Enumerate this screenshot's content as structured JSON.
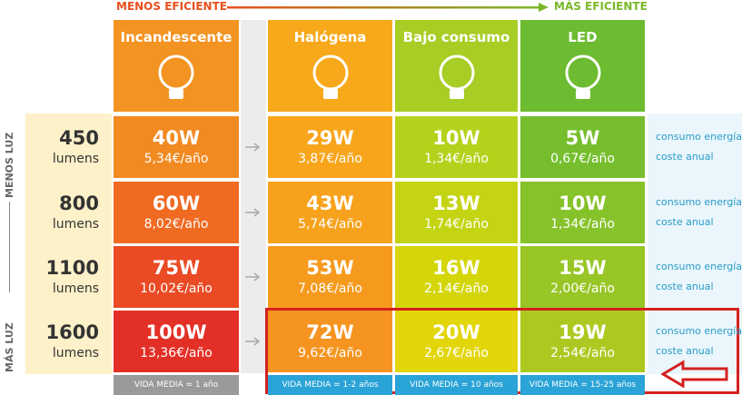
{
  "header": {
    "left": "MENOS EFICIENTE",
    "right": "MÁS EFICIENTE",
    "side_top": "MENOS LUZ",
    "side_bottom": "MÁS LUZ"
  },
  "columns": [
    {
      "name": "Incandescente",
      "life": "VIDA MEDIA = 1 año"
    },
    {
      "name": "Halógena",
      "life": "VIDA MEDIA = 1-2 años"
    },
    {
      "name": "Bajo consumo",
      "life": "VIDA MEDIA = 10 años"
    },
    {
      "name": "LED",
      "life": "VIDA MEDIA = 15-25 años"
    }
  ],
  "rows": [
    {
      "lumens": "450",
      "unit": "lumens",
      "cells": [
        {
          "power": "40W",
          "cost": "5,34€/año"
        },
        {
          "power": "29W",
          "cost": "3,87€/año"
        },
        {
          "power": "10W",
          "cost": "1,34€/año"
        },
        {
          "power": "5W",
          "cost": "0,67€/año"
        }
      ],
      "legend": [
        "consumo energía",
        "coste anual"
      ]
    },
    {
      "lumens": "800",
      "unit": "lumens",
      "cells": [
        {
          "power": "60W",
          "cost": "8,02€/año"
        },
        {
          "power": "43W",
          "cost": "5,74€/año"
        },
        {
          "power": "13W",
          "cost": "1,74€/año"
        },
        {
          "power": "10W",
          "cost": "1,34€/año"
        }
      ],
      "legend": [
        "consumo energía",
        "coste anual"
      ]
    },
    {
      "lumens": "1100",
      "unit": "lumens",
      "cells": [
        {
          "power": "75W",
          "cost": "10,02€/año"
        },
        {
          "power": "53W",
          "cost": "7,08€/año"
        },
        {
          "power": "16W",
          "cost": "2,14€/año"
        },
        {
          "power": "15W",
          "cost": "2,00€/año"
        }
      ],
      "legend": [
        "consumo energía",
        "coste anual"
      ]
    },
    {
      "lumens": "1600",
      "unit": "lumens",
      "cells": [
        {
          "power": "100W",
          "cost": "13,36€/año"
        },
        {
          "power": "72W",
          "cost": "9,62€/año"
        },
        {
          "power": "20W",
          "cost": "2,67€/año"
        },
        {
          "power": "19W",
          "cost": "2,54€/año"
        }
      ],
      "legend": [
        "consumo energía",
        "coste anual"
      ]
    }
  ]
}
